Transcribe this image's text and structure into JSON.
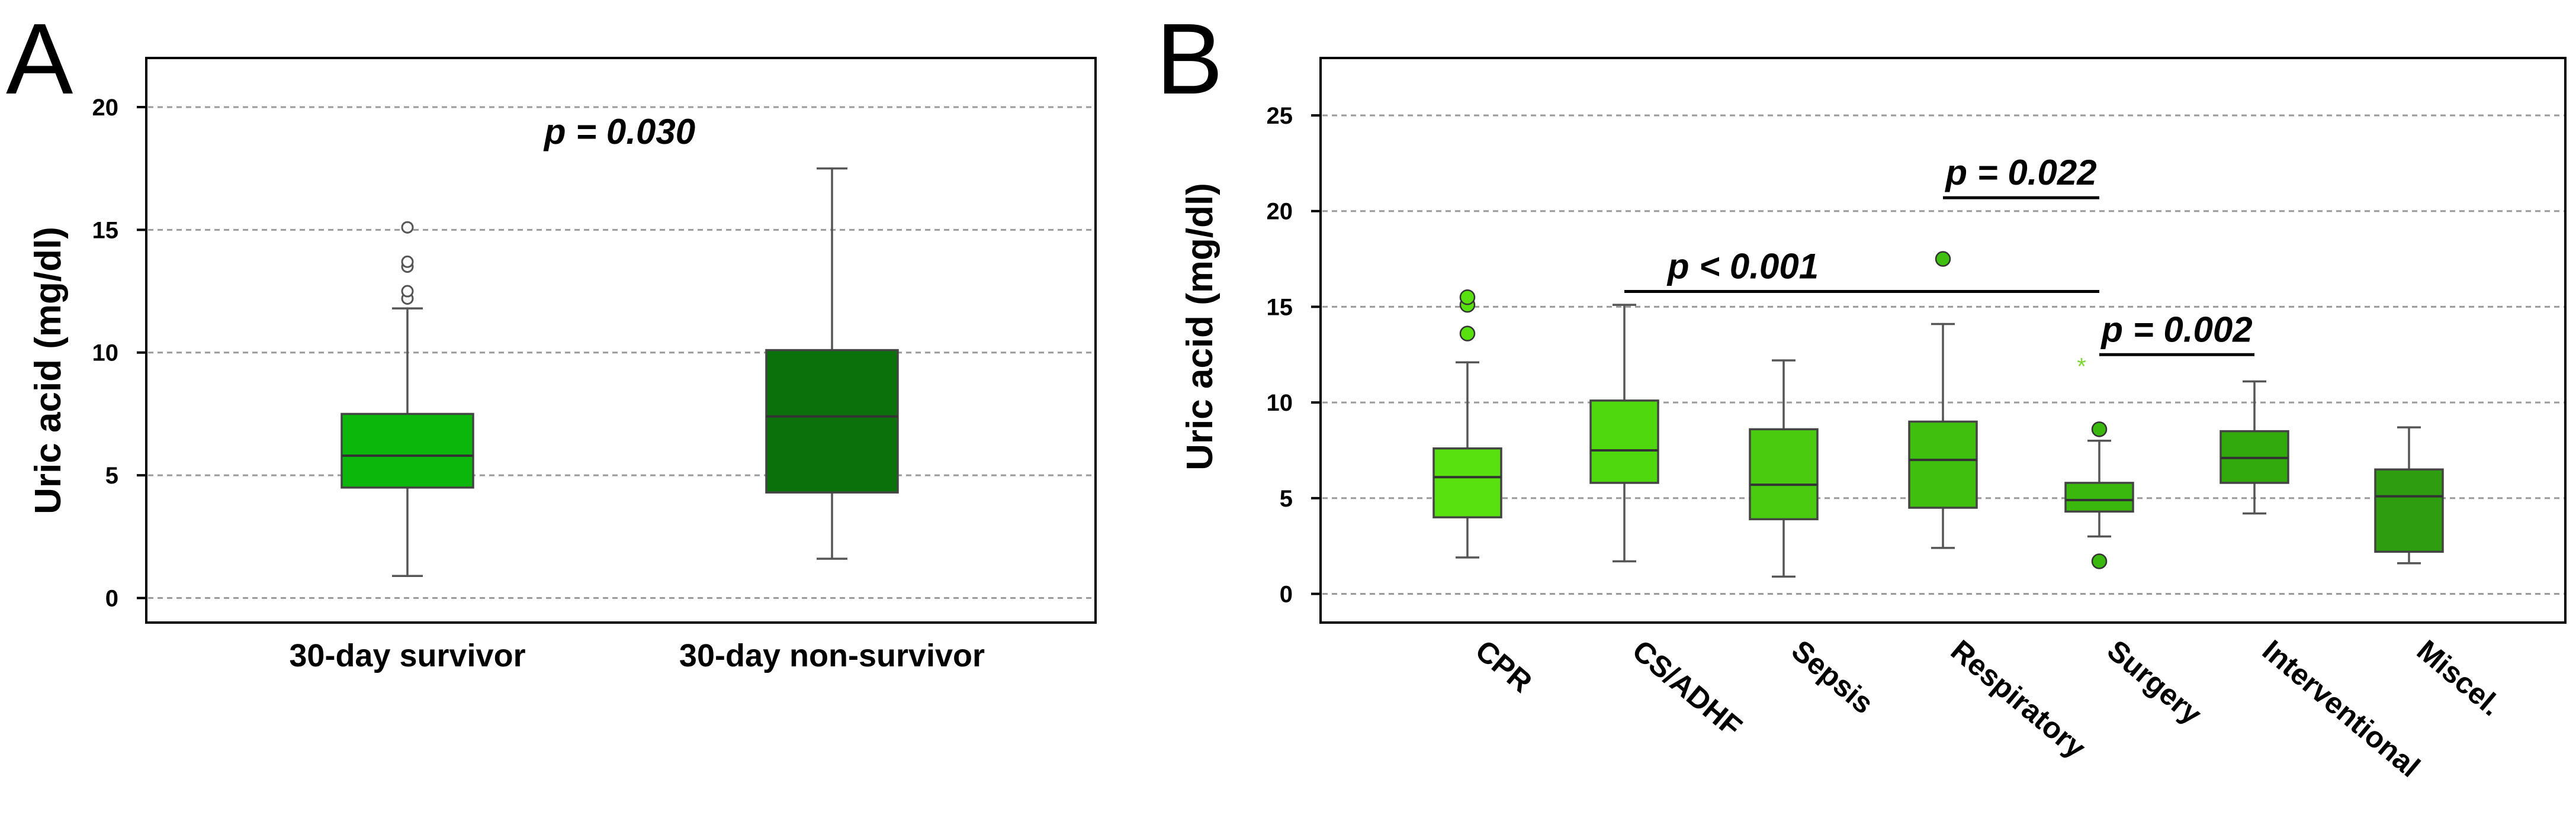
{
  "colors": {
    "survivor": "#0cb70c",
    "non_survivor": "#0b720b",
    "cpr": "#59e00f",
    "cs_adhf": "#50d80f",
    "sepsis": "#49cc0f",
    "respiratory": "#40c00e",
    "surgery": "#3ab80d",
    "interventional": "#33aa0c",
    "miscel": "#2e9d10",
    "star_outlier": "#7fd438"
  },
  "chart_data": [
    {
      "panel": "A",
      "type": "boxplot",
      "ylabel": "Uric acid (mg/dl)",
      "ylim": [
        -1,
        22
      ],
      "yticks": [
        "0",
        "5",
        "10",
        "15",
        "20"
      ],
      "grid": true,
      "categories": [
        "30-day survivor",
        "30-day non-survivor"
      ],
      "boxes": [
        {
          "name": "30-day survivor",
          "whisker_low": 0.9,
          "q1": 4.5,
          "median": 5.8,
          "q3": 7.5,
          "whisker_high": 11.8,
          "outliers": [
            12.2,
            12.5,
            13.5,
            13.7,
            15.1
          ],
          "color_key": "survivor",
          "outlier_style": "circle-open"
        },
        {
          "name": "30-day non-survivor",
          "whisker_low": 1.6,
          "q1": 4.3,
          "median": 7.4,
          "q3": 10.1,
          "whisker_high": 17.5,
          "outliers": [],
          "color_key": "non_survivor",
          "outlier_style": "circle-open"
        }
      ],
      "annotations": [
        {
          "text": "p = 0.030",
          "between": [
            0,
            1
          ],
          "y": 18.5,
          "bar": false
        }
      ]
    },
    {
      "panel": "B",
      "type": "boxplot",
      "ylabel": "Uric acid (mg/dl)",
      "ylim": [
        -1.5,
        28
      ],
      "yticks": [
        "0",
        "5",
        "10",
        "15",
        "20",
        "25"
      ],
      "grid": true,
      "categories": [
        "CPR",
        "CS/ADHF",
        "Sepsis",
        "Respiratory",
        "Surgery",
        "Interventional",
        "Miscel."
      ],
      "boxes": [
        {
          "name": "CPR",
          "whisker_low": 1.9,
          "q1": 4.0,
          "median": 6.1,
          "q3": 7.6,
          "whisker_high": 12.1,
          "outliers": [
            13.6,
            15.1,
            15.5
          ],
          "color_key": "cpr",
          "outlier_style": "circle-filled"
        },
        {
          "name": "CS/ADHF",
          "whisker_low": 1.7,
          "q1": 5.8,
          "median": 7.5,
          "q3": 10.1,
          "whisker_high": 15.1,
          "outliers": [],
          "color_key": "cs_adhf",
          "outlier_style": "circle-filled"
        },
        {
          "name": "Sepsis",
          "whisker_low": 0.9,
          "q1": 3.9,
          "median": 5.7,
          "q3": 8.6,
          "whisker_high": 12.2,
          "outliers": [],
          "color_key": "sepsis",
          "outlier_style": "circle-filled"
        },
        {
          "name": "Respiratory",
          "whisker_low": 2.4,
          "q1": 4.5,
          "median": 7.0,
          "q3": 9.0,
          "whisker_high": 14.1,
          "outliers": [
            17.5
          ],
          "color_key": "respiratory",
          "outlier_style": "circle-filled"
        },
        {
          "name": "Surgery",
          "whisker_low": 3.0,
          "q1": 4.3,
          "median": 4.9,
          "q3": 5.8,
          "whisker_high": 8.0,
          "outliers": [
            1.7,
            8.6
          ],
          "extremes": [
            11.9
          ],
          "color_key": "surgery",
          "outlier_style": "circle-filled"
        },
        {
          "name": "Interventional",
          "whisker_low": 4.2,
          "q1": 5.8,
          "median": 7.1,
          "q3": 8.5,
          "whisker_high": 11.1,
          "outliers": [],
          "color_key": "interventional",
          "outlier_style": "circle-filled"
        },
        {
          "name": "Miscel.",
          "whisker_low": 1.6,
          "q1": 2.2,
          "median": 5.1,
          "q3": 6.5,
          "whisker_high": 8.7,
          "outliers": [],
          "color_key": "miscel",
          "outlier_style": "circle-filled"
        }
      ],
      "annotations": [
        {
          "text": "p < 0.001",
          "between": [
            1,
            4
          ],
          "y": 15.8,
          "bar": true
        },
        {
          "text": "p = 0.022",
          "between": [
            3,
            4
          ],
          "y": 20.7,
          "bar": true
        },
        {
          "text": "p = 0.002",
          "between": [
            4,
            5
          ],
          "y": 12.5,
          "bar": true
        }
      ]
    }
  ]
}
